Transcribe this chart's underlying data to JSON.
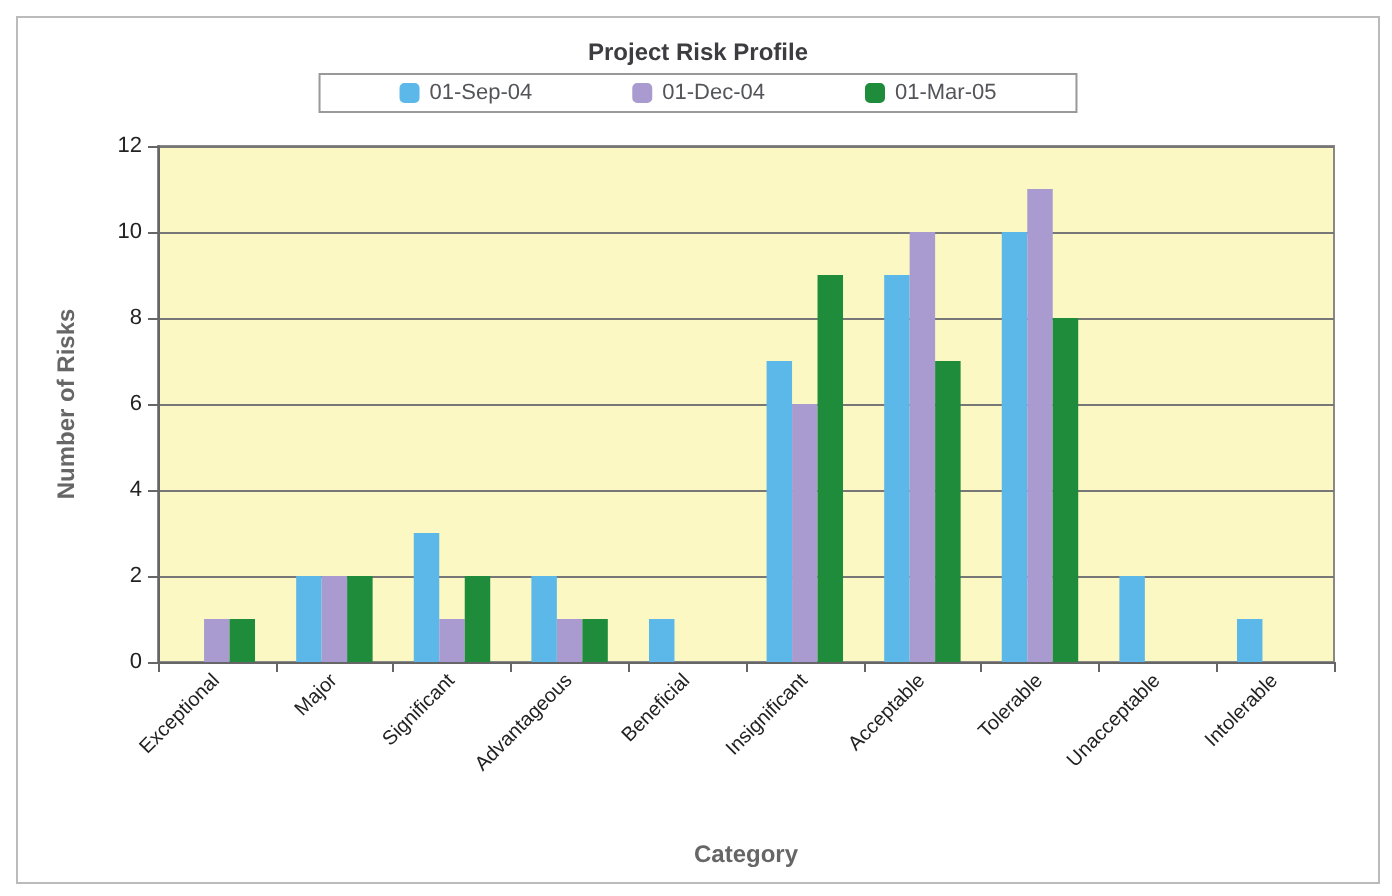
{
  "chart_data": {
    "type": "bar",
    "title": "Project Risk Profile",
    "xlabel": "Category",
    "ylabel": "Number of Risks",
    "categories": [
      "Exceptional",
      "Major",
      "Significant",
      "Advantageous",
      "Beneficial",
      "Insignificant",
      "Acceptable",
      "Tolerable",
      "Unacceptable",
      "Intolerable"
    ],
    "series": [
      {
        "name": "01-Sep-04",
        "color": "#5bb8e8",
        "values": [
          0,
          2,
          3,
          2,
          1,
          7,
          9,
          10,
          2,
          1
        ]
      },
      {
        "name": "01-Dec-04",
        "color": "#a99bd0",
        "values": [
          1,
          2,
          1,
          1,
          0,
          6,
          10,
          11,
          0,
          0
        ]
      },
      {
        "name": "01-Mar-05",
        "color": "#1e8c3a",
        "values": [
          1,
          2,
          2,
          1,
          0,
          9,
          7,
          8,
          0,
          0
        ]
      }
    ],
    "ylim": [
      0,
      12
    ],
    "yticks": [
      0,
      2,
      4,
      6,
      8,
      10,
      12
    ],
    "grid": "y",
    "legend": "top"
  }
}
